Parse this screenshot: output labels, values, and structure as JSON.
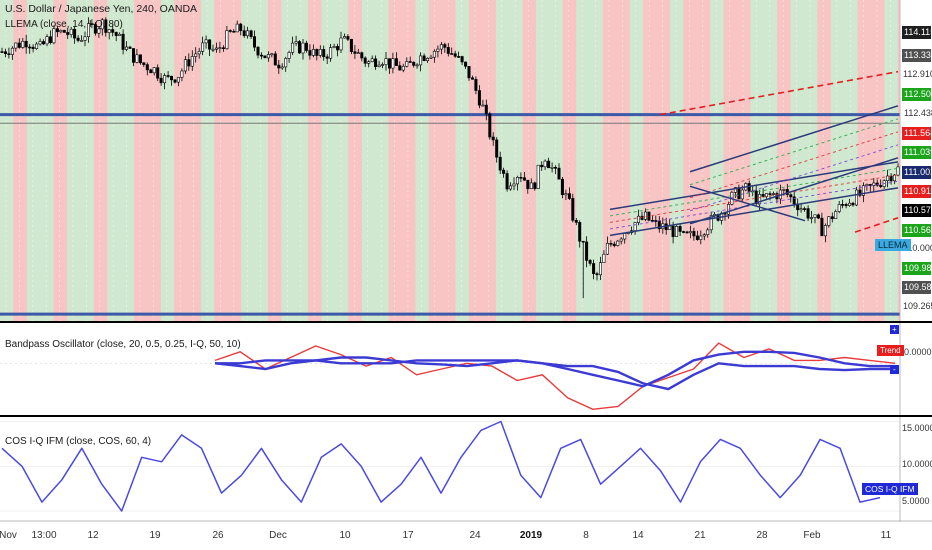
{
  "chart_data": [
    {
      "type": "candlestick",
      "title": "U.S. Dollar / Japanese Yen, 240, OANDA",
      "indicator_label": "LLEMA (close, 14, I-Q, 80)",
      "ylim": [
        109.0,
        114.6
      ],
      "price_scale": [
        "114.115",
        "113.331",
        "112.910",
        "112.509",
        "112.438",
        "111.564",
        "111.039",
        "111.002",
        "110.919",
        "110.574",
        "110.566",
        "110.000",
        "109.985",
        "109.586",
        "109.265"
      ],
      "price_tags": [
        {
          "text": "114.115",
          "bg": "#1e1e1e",
          "fg": "#ffffff"
        },
        {
          "text": "113.331",
          "bg": "#505050",
          "fg": "#ffffff"
        },
        {
          "text": "112.509",
          "bg": "#1aa51a",
          "fg": "#ffffff"
        },
        {
          "text": "112.438",
          "bg": "#ffffff",
          "fg": "#333333"
        },
        {
          "text": "111.564",
          "bg": "#e81d1d",
          "fg": "#ffffff"
        },
        {
          "text": "111.039",
          "bg": "#1aa51a",
          "fg": "#ffffff"
        },
        {
          "text": "111.002",
          "bg": "#1a2a6e",
          "fg": "#ffffff"
        },
        {
          "text": "110.919",
          "bg": "#e81d1d",
          "fg": "#ffffff"
        },
        {
          "text": "110.574",
          "bg": "#000000",
          "fg": "#ffffff"
        },
        {
          "text": "110.566",
          "bg": "#1aa51a",
          "fg": "#ffffff"
        },
        {
          "text": "109.985",
          "bg": "#1aa51a",
          "fg": "#ffffff"
        },
        {
          "text": "109.586",
          "bg": "#505050",
          "fg": "#ffffff"
        }
      ],
      "price_plain_labels": [
        "112.910",
        "109.265"
      ],
      "llema_tag": "LLEMA",
      "close_path": [
        113.7,
        113.8,
        113.9,
        113.75,
        114.0,
        114.05,
        113.9,
        114.1,
        114.2,
        114.0,
        113.7,
        113.5,
        113.4,
        113.2,
        113.3,
        113.6,
        113.8,
        113.7,
        114.0,
        114.1,
        113.8,
        113.6,
        113.5,
        113.75,
        113.8,
        113.6,
        113.7,
        113.9,
        113.7,
        113.5,
        113.6,
        113.45,
        113.4,
        113.6,
        113.7,
        113.8,
        113.6,
        113.3,
        112.8,
        112.0,
        111.4,
        111.6,
        111.3,
        111.9,
        111.5,
        111.0,
        110.3,
        109.7,
        110.3,
        110.5,
        110.7,
        110.8,
        110.65,
        110.6,
        110.45,
        110.5,
        110.7,
        110.9,
        111.2,
        111.3,
        111.1,
        111.2,
        111.25,
        111.05,
        110.85,
        110.6,
        110.9,
        111.1,
        111.2,
        111.35,
        111.5,
        111.65
      ],
      "min_low": 109.4,
      "sessions": "alternating red / green background bands"
    },
    {
      "type": "line",
      "title": "Bandpass Oscillator (close, 20, 0.5, 0.25, I-Q, 50, 10)",
      "ylim": [
        -0.9,
        0.7
      ],
      "zero_label": "0.0000",
      "trend_tag": "Trend",
      "plus_mark": "+",
      "minus_mark": "-",
      "series": [
        {
          "color": "#e83b3b",
          "values": [
            0.05,
            0.2,
            -0.1,
            0.1,
            0.3,
            0.15,
            -0.05,
            0.1,
            -0.2,
            -0.1,
            0.0,
            -0.05,
            -0.3,
            -0.2,
            -0.6,
            -0.8,
            -0.75,
            -0.4,
            -0.25,
            -0.1,
            0.35,
            0.1,
            0.25,
            0.05,
            0.05,
            0.1,
            0.05,
            0.0
          ]
        },
        {
          "color": "#3b3bd4",
          "values": [
            0.0,
            -0.05,
            -0.1,
            0.0,
            0.05,
            0.1,
            0.1,
            0.05,
            0.0,
            -0.02,
            -0.05,
            0.0,
            0.05,
            0.0,
            -0.1,
            -0.2,
            -0.3,
            -0.4,
            -0.2,
            0.05,
            0.15,
            0.2,
            0.2,
            0.18,
            0.1,
            0.0,
            -0.05,
            -0.05
          ]
        },
        {
          "color": "#3b3bd4",
          "values": [
            0.0,
            0.0,
            0.05,
            0.05,
            0.05,
            0.0,
            0.0,
            0.0,
            0.05,
            0.05,
            0.05,
            0.05,
            0.05,
            0.0,
            -0.05,
            -0.05,
            -0.15,
            -0.35,
            -0.45,
            -0.2,
            0.0,
            -0.05,
            -0.05,
            -0.05,
            -0.1,
            -0.12,
            -0.1,
            -0.1
          ]
        }
      ]
    },
    {
      "type": "line",
      "title": "COS I-Q IFM (close, COS, 60, 4)",
      "ylim": [
        4,
        15.5
      ],
      "yticks": [
        5.0,
        10.0,
        15.0
      ],
      "ytick_labels": [
        "5.0000",
        "10.0000",
        "15.0000"
      ],
      "series_tag": "COS I-Q IFM",
      "series": [
        {
          "color": "#4a4ae0",
          "values": [
            12.0,
            10.0,
            6.0,
            8.5,
            12.0,
            8.0,
            5.0,
            11.0,
            10.5,
            13.5,
            12.0,
            7.0,
            9.0,
            12.0,
            8.5,
            6.0,
            11.0,
            12.5,
            10.0,
            6.0,
            8.0,
            11.0,
            7.0,
            11.0,
            14.0,
            15.0,
            9.0,
            6.5,
            12.0,
            13.0,
            8.0,
            10.0,
            12.0,
            9.5,
            6.0,
            10.5,
            13.0,
            12.0,
            9.0,
            6.5,
            9.0,
            13.0,
            12.0,
            6.0,
            6.5
          ]
        }
      ]
    }
  ],
  "x_axis": {
    "ticks": [
      {
        "label": "Nov",
        "bold": false
      },
      {
        "label": "13:00",
        "bold": false
      },
      {
        "label": "12",
        "bold": false
      },
      {
        "label": "19",
        "bold": false
      },
      {
        "label": "26",
        "bold": false
      },
      {
        "label": "Dec",
        "bold": false
      },
      {
        "label": "10",
        "bold": false
      },
      {
        "label": "17",
        "bold": false
      },
      {
        "label": "24",
        "bold": false
      },
      {
        "label": "2019",
        "bold": true
      },
      {
        "label": "8",
        "bold": false
      },
      {
        "label": "14",
        "bold": false
      },
      {
        "label": "21",
        "bold": false
      },
      {
        "label": "28",
        "bold": false
      },
      {
        "label": "Feb",
        "bold": false
      },
      {
        "label": "11",
        "bold": false
      }
    ]
  },
  "colors": {
    "red_band": "#f8c4c4",
    "green_band": "#cfe8cf",
    "candle": "#000000",
    "hline": "#3d5aa8",
    "channel": "#2a3a7a",
    "dashed_red": "#e02020",
    "llema_tag_bg": "#39a9e0",
    "cos_tag_bg": "#1f2ad6"
  }
}
